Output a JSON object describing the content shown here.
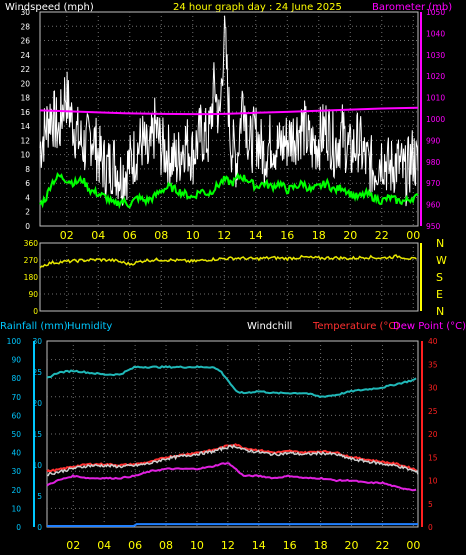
{
  "header": {
    "wind_title": "Windspeed (mph)",
    "main_title": "24 hour graph day : 24 June 2025",
    "baro_title": "Barometer (mb)"
  },
  "x_labels": [
    "02",
    "04",
    "06",
    "08",
    "10",
    "12",
    "14",
    "16",
    "18",
    "20",
    "22",
    "00"
  ],
  "bottom_header": {
    "rainfall": "Rainfall (mm)",
    "humidity": "Humidity",
    "windchill": "Windchill",
    "temperature": "Temperature (°C)",
    "dewpoint": "Dew Point (°C)"
  },
  "colors": {
    "background": "#000000",
    "plot_border": "#bfbfbf",
    "wind_gust": "#ffffff",
    "wind_avg": "#00ff00",
    "barometer": "#ff00ff",
    "wind_dir": "#e6e600",
    "humidity": "#20b8b8",
    "temperature": "#ff3030",
    "windchill": "#cfcfcf",
    "dewpoint": "#e020e0",
    "rainfall": "#2080ff",
    "axis_wind": "#ffffff",
    "axis_baro": "#ff00ff",
    "axis_dir": "#ffff00",
    "axis_rain": "#00c8ff",
    "axis_hum": "#00c8ff",
    "axis_temp": "#ff2020"
  },
  "chart_data": [
    {
      "type": "line",
      "title": "24 hour graph day : 24 June 2025",
      "ylabel": "Windspeed (mph)",
      "y2label": "Barometer (mb)",
      "x_range": [
        0.3,
        24.3
      ],
      "ylim": [
        0,
        30
      ],
      "y_ticks": [
        0,
        2,
        4,
        6,
        8,
        10,
        12,
        14,
        16,
        18,
        20,
        22,
        24,
        26,
        28,
        30
      ],
      "y2lim": [
        950,
        1050
      ],
      "y2_ticks": [
        950,
        960,
        970,
        980,
        990,
        1000,
        1010,
        1020,
        1030,
        1040,
        1050
      ],
      "series": [
        {
          "name": "Windspeed (mph)",
          "x": [
            0.3,
            0.7,
            1.0,
            1.5,
            1.9,
            2.3,
            2.8,
            3.2,
            3.6,
            4.0,
            4.5,
            5.0,
            5.4,
            5.8,
            6.3,
            6.8,
            7.2,
            7.6,
            8.0,
            8.5,
            9.0,
            9.5,
            10.0,
            10.5,
            11.0,
            11.4,
            11.7,
            12.0,
            12.4,
            12.8,
            13.2,
            13.6,
            14.0,
            14.5,
            15.0,
            15.5,
            16.0,
            16.5,
            17.0,
            17.5,
            18.0,
            18.5,
            19.0,
            19.5,
            20.0,
            20.5,
            21.0,
            21.5,
            22.0,
            22.5,
            23.0,
            23.5,
            24.0,
            24.3
          ],
          "values": [
            11,
            14,
            16,
            13,
            19,
            15,
            12,
            11,
            13,
            10,
            8,
            9,
            7,
            8,
            10,
            12,
            9,
            14,
            11,
            10,
            9,
            12,
            10,
            13,
            12,
            20,
            14,
            28,
            12,
            9,
            19,
            11,
            13,
            10,
            12,
            11,
            12,
            13,
            14,
            11,
            12,
            14,
            11,
            13,
            10,
            12,
            9,
            8,
            10,
            8,
            9,
            7,
            10,
            8
          ]
        },
        {
          "name": "Wind average",
          "x": [
            0.3,
            0.7,
            1.0,
            1.5,
            2.0,
            2.5,
            3.0,
            3.5,
            4.0,
            4.5,
            5.0,
            5.5,
            6.0,
            6.5,
            7.0,
            7.5,
            8.0,
            8.5,
            9.0,
            9.5,
            10.0,
            10.5,
            11.0,
            11.5,
            12.0,
            12.5,
            13.0,
            13.5,
            14.0,
            14.5,
            15.0,
            15.5,
            16.0,
            16.5,
            17.0,
            17.5,
            18.0,
            18.5,
            19.0,
            19.5,
            20.0,
            20.5,
            21.0,
            21.5,
            22.0,
            22.5,
            23.0,
            23.5,
            24.0,
            24.3
          ],
          "values": [
            3,
            4,
            6,
            7,
            6.5,
            6,
            6.5,
            5,
            4.5,
            4,
            3,
            3.5,
            3,
            4,
            3.5,
            4,
            5,
            5.5,
            5,
            4.5,
            4,
            5,
            4.5,
            5.5,
            6.5,
            6,
            7,
            6.5,
            5.5,
            6,
            5.5,
            6,
            5,
            5.5,
            6,
            5,
            5.5,
            6,
            5,
            5.5,
            4.5,
            4,
            4.5,
            4,
            3.5,
            4,
            3.5,
            3.5,
            4,
            4
          ]
        },
        {
          "name": "Barometer (mb)",
          "axis": "y2",
          "x": [
            0.3,
            2,
            4,
            6,
            8,
            10,
            11,
            12,
            13,
            14,
            16,
            18,
            20,
            22,
            24.3
          ],
          "values": [
            1004,
            1003.6,
            1003.1,
            1002.6,
            1002.4,
            1002.3,
            1002.3,
            1002.4,
            1002.6,
            1002.9,
            1003.3,
            1003.9,
            1004.4,
            1004.9,
            1005.3
          ]
        }
      ]
    },
    {
      "type": "line",
      "title": "",
      "x_range": [
        0.3,
        24.3
      ],
      "ylim": [
        0,
        360
      ],
      "y_ticks": [
        0,
        90,
        180,
        270,
        360
      ],
      "direction_labels": [
        "N",
        "W",
        "S",
        "E",
        "N"
      ],
      "series": [
        {
          "name": "Wind direction",
          "x": [
            0.3,
            1,
            2,
            3,
            4,
            5,
            6,
            7,
            8,
            9,
            10,
            11,
            12,
            13,
            14,
            15,
            16,
            17,
            18,
            19,
            20,
            21,
            22,
            23,
            24,
            24.3
          ],
          "values": [
            235,
            255,
            262,
            268,
            272,
            268,
            248,
            268,
            272,
            268,
            262,
            272,
            278,
            280,
            276,
            282,
            278,
            285,
            280,
            282,
            278,
            286,
            280,
            290,
            275,
            270
          ]
        }
      ]
    },
    {
      "type": "line",
      "title": "",
      "x_range": [
        0.3,
        24.3
      ],
      "y_rain_lim": [
        0,
        30
      ],
      "y_rain_ticks": [
        0,
        5,
        10,
        15,
        20,
        25,
        30
      ],
      "y_hum_lim": [
        0,
        100
      ],
      "y_hum_ticks": [
        0,
        10,
        20,
        30,
        40,
        50,
        60,
        70,
        80,
        90,
        100
      ],
      "y_temp_lim": [
        0,
        40
      ],
      "y_temp_ticks": [
        0,
        5,
        10,
        15,
        20,
        25,
        30,
        35,
        40
      ],
      "series": [
        {
          "name": "Humidity",
          "axis": "humidity",
          "x": [
            0.3,
            1,
            2,
            3,
            4,
            5,
            5.5,
            6,
            7,
            8,
            9,
            10,
            11,
            11.5,
            12,
            12.5,
            13,
            14,
            15,
            16,
            17,
            18,
            19,
            20,
            21,
            22,
            23,
            24,
            24.3
          ],
          "values": [
            80,
            83,
            84,
            83,
            82,
            82,
            84,
            86,
            86,
            86,
            86,
            86,
            86,
            84,
            79,
            73,
            72,
            73,
            72,
            72,
            72,
            70,
            71,
            73,
            74,
            75,
            77,
            79,
            80
          ]
        },
        {
          "name": "Temperature (°C)",
          "axis": "temperature",
          "x": [
            0.3,
            1,
            2,
            3,
            4,
            5,
            6,
            7,
            8,
            9,
            10,
            11,
            12,
            12.5,
            13,
            14,
            15,
            16,
            17,
            18,
            19,
            20,
            21,
            22,
            23,
            24,
            24.3
          ],
          "values": [
            12,
            12.3,
            13,
            13.5,
            13.5,
            13.3,
            13.5,
            14,
            15,
            15.5,
            16,
            16.5,
            17.5,
            17.8,
            17,
            16.5,
            16,
            16.3,
            16,
            16.3,
            16,
            15,
            14.5,
            14,
            13.5,
            12.5,
            12
          ]
        },
        {
          "name": "Windchill",
          "axis": "temperature",
          "x": [
            0.3,
            1,
            2,
            3,
            4,
            5,
            6,
            7,
            8,
            9,
            10,
            11,
            12,
            12.5,
            13,
            14,
            15,
            16,
            17,
            18,
            19,
            20,
            21,
            22,
            23,
            24,
            24.3
          ],
          "values": [
            11.3,
            11.8,
            12.6,
            13.2,
            13.2,
            13,
            13.2,
            13.7,
            14.7,
            15.2,
            15.7,
            16.2,
            17.2,
            17.4,
            16.6,
            16.1,
            15.6,
            15.9,
            15.6,
            15.9,
            15.6,
            14.6,
            14.1,
            13.6,
            13.1,
            12.1,
            11.6
          ]
        },
        {
          "name": "Dew Point (°C)",
          "axis": "temperature",
          "x": [
            0.3,
            1,
            2,
            3,
            4,
            5,
            6,
            7,
            8,
            9,
            10,
            11,
            11.5,
            12,
            12.5,
            13,
            14,
            15,
            16,
            17,
            18,
            19,
            20,
            21,
            22,
            23,
            24,
            24.3
          ],
          "values": [
            9,
            10,
            11,
            10.5,
            10.5,
            10.5,
            11,
            12,
            12.5,
            12.5,
            12.5,
            13,
            13.5,
            13.8,
            12.5,
            11,
            11,
            10.5,
            11,
            10.5,
            10.5,
            10,
            10,
            9.5,
            9.5,
            8.5,
            8,
            8
          ]
        },
        {
          "name": "Rainfall (mm)",
          "axis": "rainfall",
          "x": [
            0.3,
            5.9,
            6.1,
            24.3
          ],
          "values": [
            0,
            0,
            0.3,
            0.3
          ]
        }
      ]
    }
  ]
}
